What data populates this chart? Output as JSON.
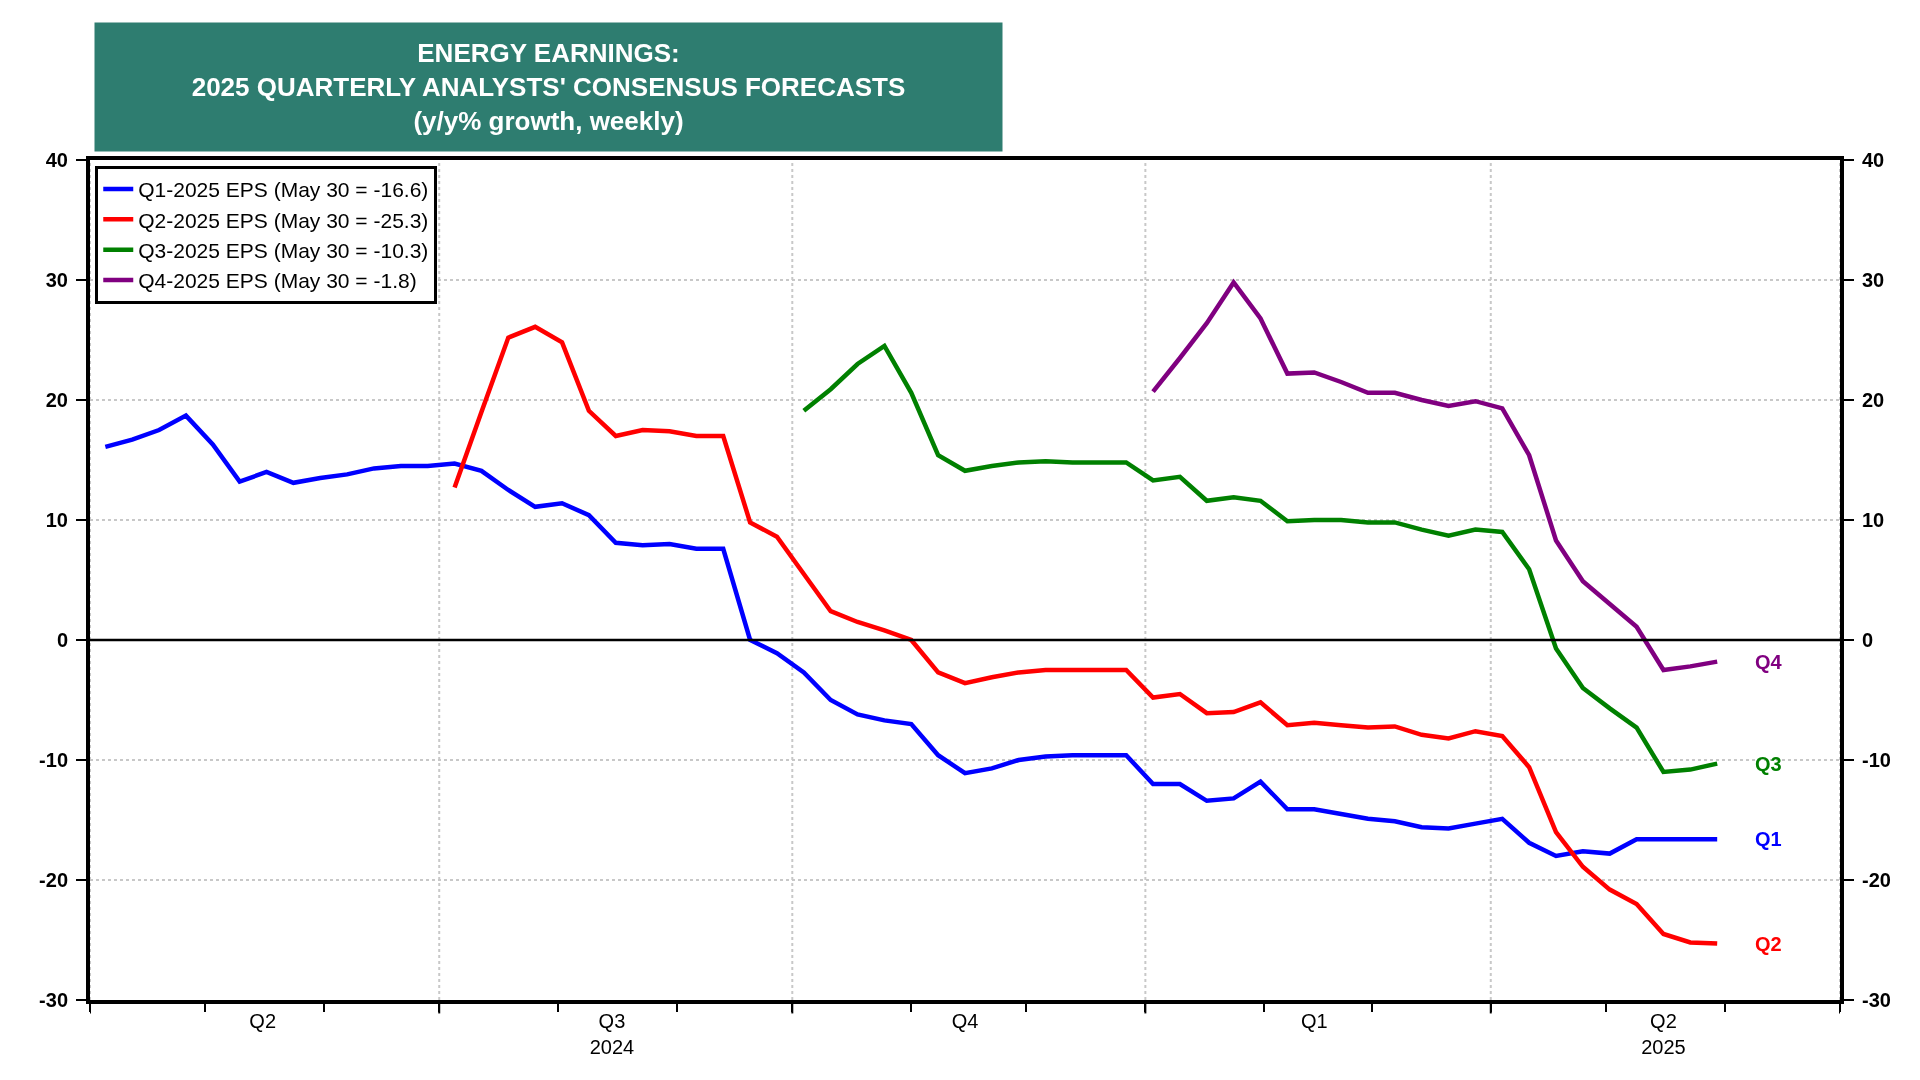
{
  "chart_data": {
    "type": "line",
    "title": "ENERGY EARNINGS:\n2025 QUARTERLY ANALYSTS' CONSENSUS FORECASTS\n(y/y% growth, weekly)",
    "x": [
      "2024-04-05",
      "2024-04-12",
      "2024-04-19",
      "2024-04-26",
      "2024-05-03",
      "2024-05-10",
      "2024-05-17",
      "2024-05-24",
      "2024-05-31",
      "2024-06-07",
      "2024-06-14",
      "2024-06-21",
      "2024-06-28",
      "2024-07-05",
      "2024-07-12",
      "2024-07-19",
      "2024-07-26",
      "2024-08-02",
      "2024-08-09",
      "2024-08-16",
      "2024-08-23",
      "2024-08-30",
      "2024-09-06",
      "2024-09-13",
      "2024-09-20",
      "2024-09-27",
      "2024-10-04",
      "2024-10-11",
      "2024-10-18",
      "2024-10-25",
      "2024-11-01",
      "2024-11-08",
      "2024-11-15",
      "2024-11-22",
      "2024-11-29",
      "2024-12-06",
      "2024-12-13",
      "2024-12-20",
      "2024-12-27",
      "2025-01-03",
      "2025-01-10",
      "2025-01-17",
      "2025-01-24",
      "2025-01-31",
      "2025-02-07",
      "2025-02-14",
      "2025-02-21",
      "2025-02-28",
      "2025-03-07",
      "2025-03-14",
      "2025-03-21",
      "2025-03-28",
      "2025-04-04",
      "2025-04-11",
      "2025-04-18",
      "2025-04-25",
      "2025-05-02",
      "2025-05-09",
      "2025-05-16",
      "2025-05-23",
      "2025-05-30"
    ],
    "series": [
      {
        "name": "Q1-2025 EPS (May 30 = -16.6)",
        "color": "#0000ff",
        "values": [
          16.1,
          16.7,
          17.5,
          18.7,
          16.3,
          13.2,
          14.0,
          13.1,
          13.5,
          13.8,
          14.3,
          14.5,
          14.5,
          14.7,
          14.1,
          12.5,
          11.1,
          11.4,
          10.4,
          8.1,
          7.9,
          8.0,
          7.6,
          7.6,
          0.0,
          -1.1,
          -2.7,
          -5.0,
          -6.2,
          -6.7,
          -7.0,
          -9.6,
          -11.1,
          -10.7,
          -10.0,
          -9.7,
          -9.6,
          -9.6,
          -9.6,
          -12.0,
          -12.0,
          -13.4,
          -13.2,
          -11.8,
          -14.1,
          -14.1,
          -14.5,
          -14.9,
          -15.1,
          -15.6,
          -15.7,
          -15.3,
          -14.9,
          -16.9,
          -18.0,
          -17.6,
          -17.8,
          -16.6,
          -16.6,
          -16.6,
          -16.6
        ]
      },
      {
        "name": "Q2-2025 EPS (May 30 = -25.3)",
        "color": "#ff0000",
        "values": [
          null,
          null,
          null,
          null,
          null,
          null,
          null,
          null,
          null,
          null,
          null,
          null,
          null,
          12.7,
          19.0,
          25.2,
          26.1,
          24.8,
          19.1,
          17.0,
          17.5,
          17.4,
          17.0,
          17.0,
          9.8,
          8.6,
          5.5,
          2.4,
          1.5,
          0.8,
          0.0,
          -2.7,
          -3.6,
          -3.1,
          -2.7,
          -2.5,
          -2.5,
          -2.5,
          -2.5,
          -4.8,
          -4.5,
          -6.1,
          -6.0,
          -5.2,
          -7.1,
          -6.9,
          -7.1,
          -7.3,
          -7.2,
          -7.9,
          -8.2,
          -7.6,
          -8.0,
          -10.6,
          -16.0,
          -18.9,
          -20.8,
          -22.0,
          -24.5,
          -25.2,
          -25.3
        ]
      },
      {
        "name": "Q3-2025 EPS (May 30 = -10.3)",
        "color": "#008000",
        "values": [
          null,
          null,
          null,
          null,
          null,
          null,
          null,
          null,
          null,
          null,
          null,
          null,
          null,
          null,
          null,
          null,
          null,
          null,
          null,
          null,
          null,
          null,
          null,
          null,
          null,
          null,
          19.1,
          20.9,
          23.0,
          24.5,
          20.6,
          15.4,
          14.1,
          14.5,
          14.8,
          14.9,
          14.8,
          14.8,
          14.8,
          13.3,
          13.6,
          11.6,
          11.9,
          11.6,
          9.9,
          10.0,
          10.0,
          9.8,
          9.8,
          9.2,
          8.7,
          9.2,
          9.0,
          5.9,
          -0.7,
          -4.0,
          -5.7,
          -7.3,
          -11.0,
          -10.8,
          -10.3
        ]
      },
      {
        "name": "Q4-2025 EPS (May 30 = -1.8)",
        "color": "#800080",
        "values": [
          null,
          null,
          null,
          null,
          null,
          null,
          null,
          null,
          null,
          null,
          null,
          null,
          null,
          null,
          null,
          null,
          null,
          null,
          null,
          null,
          null,
          null,
          null,
          null,
          null,
          null,
          null,
          null,
          null,
          null,
          null,
          null,
          null,
          null,
          null,
          null,
          null,
          null,
          null,
          20.7,
          23.5,
          26.4,
          29.8,
          26.8,
          22.2,
          22.3,
          21.5,
          20.6,
          20.6,
          20.0,
          19.5,
          19.9,
          19.3,
          15.4,
          8.3,
          4.9,
          3.0,
          1.1,
          -2.5,
          -2.2,
          -1.8
        ]
      }
    ],
    "annotations": [
      {
        "text": "Q1",
        "x": "2025-05-30",
        "y": -16.6
      },
      {
        "text": "Q2",
        "x": "2025-05-30",
        "y": -25.3
      },
      {
        "text": "Q3",
        "x": "2025-05-30",
        "y": -10.3
      },
      {
        "text": "Q4",
        "x": "2025-05-30",
        "y": -1.8
      }
    ],
    "xlim": [
      "2024-04-01",
      "2025-07-01"
    ],
    "xticks": [
      {
        "value": "2024-04-01",
        "label": null
      },
      {
        "value": "2024-05-16",
        "label": "Q2"
      },
      {
        "value": "2024-07-01",
        "label": null
      },
      {
        "value": "2024-08-15",
        "label": "Q3\n2024"
      },
      {
        "value": "2024-10-01",
        "label": null
      },
      {
        "value": "2024-11-15",
        "label": "Q4"
      },
      {
        "value": "2025-01-01",
        "label": null
      },
      {
        "value": "2025-02-14",
        "label": "Q1"
      },
      {
        "value": "2025-04-01",
        "label": null
      },
      {
        "value": "2025-05-16",
        "label": "Q2\n2025"
      },
      {
        "value": "2025-07-01",
        "label": null
      }
    ],
    "ylim": [
      -30,
      40
    ],
    "yticks": [
      -30,
      -20,
      -10,
      0,
      10,
      20,
      30,
      40
    ],
    "y2lim": [
      -30,
      40
    ],
    "y2ticks": [
      -30,
      -20,
      -10,
      0,
      10,
      20,
      30,
      40
    ],
    "ref_lines": [
      {
        "axis": "y",
        "value": 0,
        "color": "#000000"
      }
    ],
    "grid": true,
    "legend": "top left",
    "marker": "none",
    "line_style": "solid"
  }
}
